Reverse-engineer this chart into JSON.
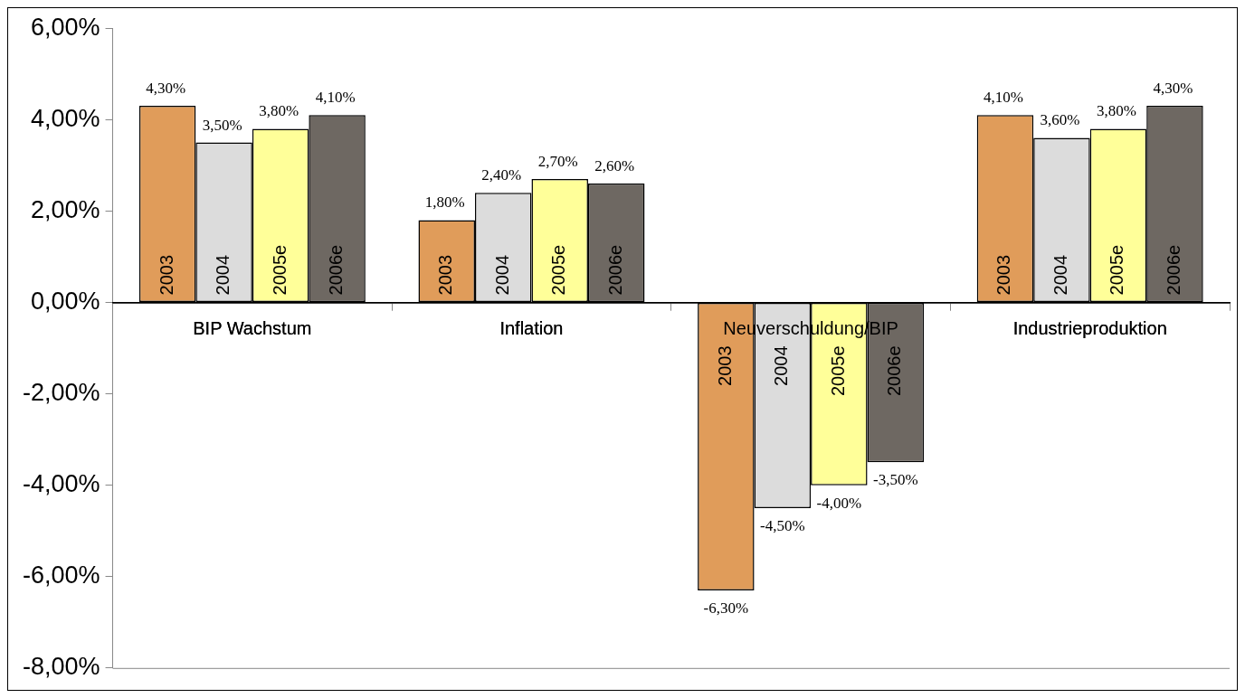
{
  "chart_data": {
    "type": "bar",
    "categories": [
      "BIP Wachstum",
      "Inflation",
      "Neuverschuldung/BIP",
      "Industrieproduktion"
    ],
    "series": [
      {
        "name": "2003",
        "color": "#e09c5a",
        "values": [
          4.3,
          1.8,
          -6.3,
          4.1
        ],
        "value_labels": [
          "4,30%",
          "1,80%",
          "-6,30%",
          "4,10%"
        ]
      },
      {
        "name": "2004",
        "color": "#dcdcdc",
        "values": [
          3.5,
          2.4,
          -4.5,
          3.6
        ],
        "value_labels": [
          "3,50%",
          "2,40%",
          "-4,50%",
          "3,60%"
        ]
      },
      {
        "name": "2005e",
        "color": "#ffff99",
        "values": [
          3.8,
          2.7,
          -4.0,
          3.8
        ],
        "value_labels": [
          "3,80%",
          "2,70%",
          "-4,00%",
          "3,80%"
        ]
      },
      {
        "name": "2006e",
        "color": "#6e6862",
        "values": [
          4.1,
          2.6,
          -3.5,
          4.3
        ],
        "value_labels": [
          "4,10%",
          "2,60%",
          "-3,50%",
          "4,30%"
        ]
      }
    ],
    "ylim": [
      -8,
      6
    ],
    "yticks": [
      {
        "value": -8,
        "label": "-8,00%"
      },
      {
        "value": -6,
        "label": "-6,00%"
      },
      {
        "value": -4,
        "label": "-4,00%"
      },
      {
        "value": -2,
        "label": "-2,00%"
      },
      {
        "value": 0,
        "label": "0,00%"
      },
      {
        "value": 2,
        "label": "2,00%"
      },
      {
        "value": 4,
        "label": "4,00%"
      },
      {
        "value": 6,
        "label": "6,00%"
      }
    ],
    "grid": false,
    "legend": false
  }
}
